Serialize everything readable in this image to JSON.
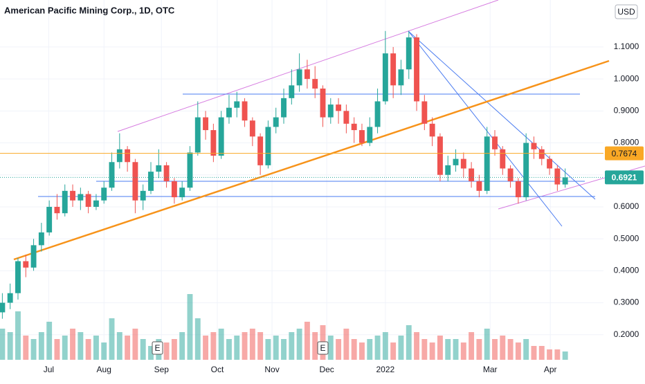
{
  "chart_data": {
    "type": "candlestick",
    "title": "American Pacific Mining Corp., 1D, OTC",
    "currency": "USD",
    "open": [
      0.27,
      0.3,
      0.33,
      0.43,
      0.41,
      0.48,
      0.52,
      0.6,
      0.58,
      0.65,
      0.62,
      0.64,
      0.6,
      0.62,
      0.66,
      0.74,
      0.78,
      0.74,
      0.62,
      0.65,
      0.71,
      0.73,
      0.68,
      0.63,
      0.66,
      0.77,
      0.88,
      0.84,
      0.76,
      0.88,
      0.91,
      0.93,
      0.87,
      0.82,
      0.73,
      0.85,
      0.88,
      0.94,
      0.98,
      1.03,
      1.0,
      0.97,
      0.88,
      0.92,
      0.9,
      0.86,
      0.84,
      0.8,
      0.85,
      0.93,
      1.08,
      0.98,
      1.03,
      1.13,
      0.93,
      0.86,
      0.82,
      0.7,
      0.73,
      0.75,
      0.72,
      0.68,
      0.65,
      0.82,
      0.78,
      0.72,
      0.68,
      0.63,
      0.8,
      0.78,
      0.75,
      0.72,
      0.67
    ],
    "high": [
      0.33,
      0.36,
      0.44,
      0.45,
      0.5,
      0.55,
      0.62,
      0.64,
      0.67,
      0.67,
      0.66,
      0.65,
      0.64,
      0.68,
      0.77,
      0.83,
      0.79,
      0.75,
      0.67,
      0.74,
      0.78,
      0.74,
      0.69,
      0.68,
      0.79,
      0.93,
      0.9,
      0.86,
      0.9,
      0.95,
      0.96,
      0.94,
      0.88,
      0.83,
      0.87,
      0.91,
      0.97,
      1.03,
      1.08,
      1.06,
      1.04,
      0.98,
      0.94,
      0.94,
      0.92,
      0.88,
      0.86,
      0.88,
      0.97,
      1.15,
      1.1,
      1.06,
      1.15,
      1.14,
      0.95,
      0.88,
      0.83,
      0.76,
      0.78,
      0.77,
      0.74,
      0.7,
      0.85,
      0.84,
      0.79,
      0.73,
      0.69,
      0.83,
      0.82,
      0.79,
      0.76,
      0.73,
      0.72
    ],
    "low": [
      0.25,
      0.28,
      0.31,
      0.38,
      0.4,
      0.46,
      0.51,
      0.56,
      0.57,
      0.6,
      0.59,
      0.58,
      0.59,
      0.61,
      0.65,
      0.72,
      0.71,
      0.58,
      0.59,
      0.64,
      0.69,
      0.66,
      0.61,
      0.62,
      0.65,
      0.76,
      0.81,
      0.74,
      0.75,
      0.86,
      0.88,
      0.85,
      0.79,
      0.7,
      0.72,
      0.83,
      0.86,
      0.92,
      0.96,
      0.97,
      0.94,
      0.85,
      0.86,
      0.86,
      0.83,
      0.8,
      0.79,
      0.79,
      0.83,
      0.92,
      0.94,
      0.95,
      1.0,
      0.9,
      0.84,
      0.79,
      0.68,
      0.68,
      0.71,
      0.69,
      0.66,
      0.63,
      0.64,
      0.76,
      0.7,
      0.66,
      0.61,
      0.62,
      0.75,
      0.73,
      0.7,
      0.65,
      0.66
    ],
    "close": [
      0.3,
      0.33,
      0.43,
      0.41,
      0.48,
      0.52,
      0.6,
      0.58,
      0.65,
      0.62,
      0.64,
      0.6,
      0.62,
      0.66,
      0.74,
      0.78,
      0.74,
      0.62,
      0.65,
      0.71,
      0.73,
      0.68,
      0.63,
      0.66,
      0.77,
      0.88,
      0.84,
      0.76,
      0.88,
      0.91,
      0.93,
      0.87,
      0.82,
      0.73,
      0.85,
      0.88,
      0.94,
      0.98,
      1.03,
      1.0,
      0.97,
      0.88,
      0.92,
      0.9,
      0.86,
      0.84,
      0.8,
      0.85,
      0.93,
      1.08,
      0.98,
      1.03,
      1.13,
      0.93,
      0.86,
      0.82,
      0.7,
      0.73,
      0.75,
      0.72,
      0.68,
      0.65,
      0.82,
      0.78,
      0.72,
      0.68,
      0.63,
      0.8,
      0.78,
      0.75,
      0.72,
      0.67,
      0.6921
    ],
    "volume": [
      45,
      40,
      70,
      35,
      30,
      40,
      55,
      30,
      35,
      45,
      40,
      30,
      35,
      25,
      60,
      40,
      35,
      45,
      30,
      20,
      30,
      25,
      30,
      40,
      95,
      60,
      35,
      40,
      45,
      30,
      35,
      40,
      45,
      40,
      30,
      35,
      30,
      40,
      45,
      55,
      40,
      50,
      35,
      30,
      45,
      30,
      25,
      30,
      35,
      40,
      25,
      35,
      50,
      40,
      30,
      25,
      35,
      30,
      30,
      25,
      40,
      30,
      45,
      30,
      35,
      30,
      25,
      30,
      20,
      20,
      15,
      15,
      12
    ],
    "up_color": "#26a69a",
    "down_color": "#ef5350",
    "xlim": [
      -0.3,
      76.9
    ],
    "xticks": [
      {
        "value": 5.93,
        "label": "Jul"
      },
      {
        "value": 13.0,
        "label": "Aug"
      },
      {
        "value": 20.35,
        "label": "Sep"
      },
      {
        "value": 27.5,
        "label": "Oct"
      },
      {
        "value": 34.5,
        "label": "Nov"
      },
      {
        "value": 41.5,
        "label": "Dec"
      },
      {
        "value": 49.0,
        "label": "2022"
      },
      {
        "value": 62.4,
        "label": "Mar"
      },
      {
        "value": 70.1,
        "label": "Apr"
      }
    ],
    "ylim": [
      0.1216,
      1.247
    ],
    "yticks": [
      {
        "value": 0.2,
        "label": "0.2000"
      },
      {
        "value": 0.3,
        "label": "0.3000"
      },
      {
        "value": 0.4,
        "label": "0.4000"
      },
      {
        "value": 0.5,
        "label": "0.5000"
      },
      {
        "value": 0.6,
        "label": "0.6000"
      },
      {
        "value": 0.7,
        "label": "0.7000"
      },
      {
        "value": 0.8,
        "label": "0.8000"
      },
      {
        "value": 0.9,
        "label": "0.9000"
      },
      {
        "value": 1.0,
        "label": "1.0000"
      },
      {
        "value": 1.1,
        "label": "1.1000"
      }
    ],
    "hline": {
      "value": 0.7674,
      "color": "#f9a825"
    },
    "last_price": {
      "value": 0.6921,
      "color": "#26a69a"
    },
    "events": [
      "E",
      "E"
    ],
    "grid": true
  }
}
